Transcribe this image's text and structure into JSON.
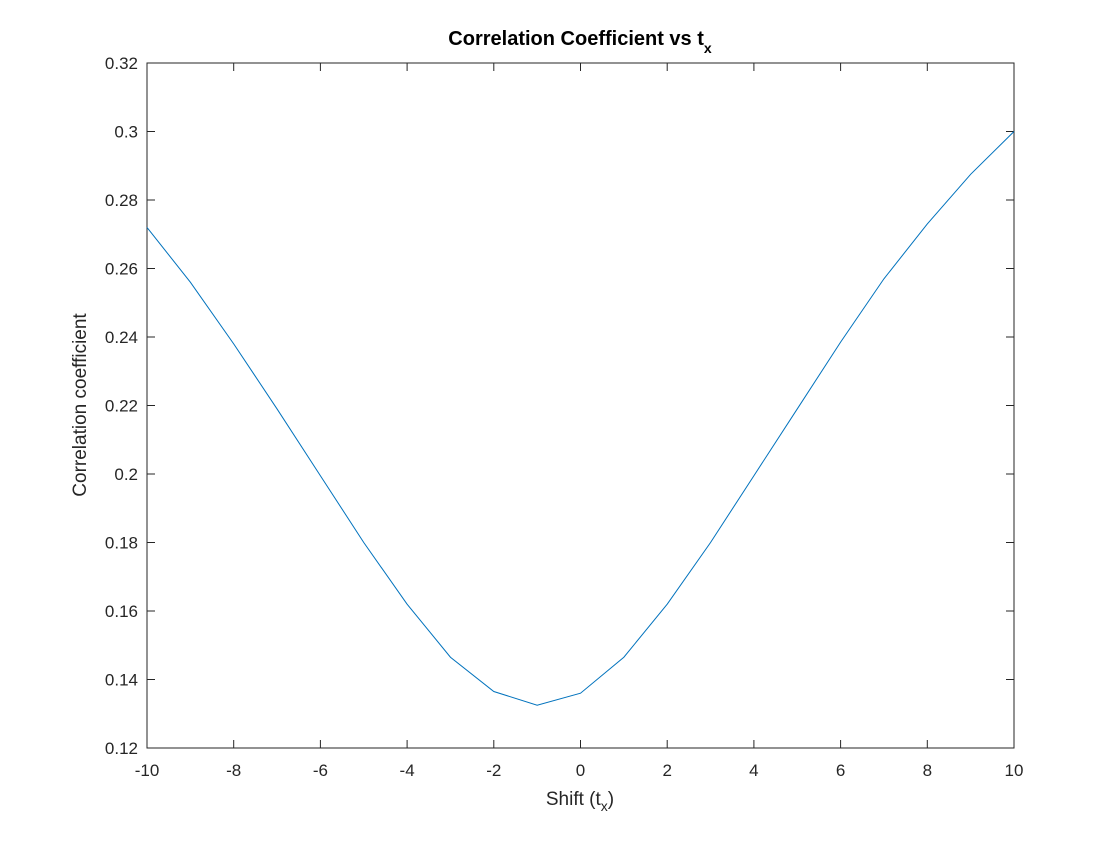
{
  "chart_data": {
    "type": "line",
    "title": {
      "main": "Correlation Coefficient vs t",
      "sub": "x"
    },
    "xlabel": {
      "main": "Shift (t",
      "sub": "x",
      "close": ")"
    },
    "ylabel": "Correlation coefficient",
    "xlim": [
      -10,
      10
    ],
    "ylim": [
      0.12,
      0.32
    ],
    "xticks": [
      -10,
      -8,
      -6,
      -4,
      -2,
      0,
      2,
      4,
      6,
      8,
      10
    ],
    "xtick_labels": [
      "-10",
      "-8",
      "-6",
      "-4",
      "-2",
      "0",
      "2",
      "4",
      "6",
      "8",
      "10"
    ],
    "yticks": [
      0.12,
      0.14,
      0.16,
      0.18,
      0.2,
      0.22,
      0.24,
      0.26,
      0.28,
      0.3,
      0.32
    ],
    "ytick_labels": [
      "0.12",
      "0.14",
      "0.16",
      "0.18",
      "0.2",
      "0.22",
      "0.24",
      "0.26",
      "0.28",
      "0.3",
      "0.32"
    ],
    "grid": false,
    "box": true,
    "series": [
      {
        "color": "#0072BD",
        "x": [
          -10,
          -9,
          -8,
          -7,
          -6,
          -5,
          -4,
          -3,
          -2,
          -1,
          0,
          1,
          2,
          3,
          4,
          5,
          6,
          7,
          8,
          9,
          10
        ],
        "y": [
          0.272,
          0.256,
          0.238,
          0.219,
          0.1995,
          0.18,
          0.162,
          0.1465,
          0.1365,
          0.1325,
          0.136,
          0.1465,
          0.162,
          0.18,
          0.1995,
          0.219,
          0.2385,
          0.257,
          0.273,
          0.2875,
          0.3
        ]
      }
    ]
  }
}
